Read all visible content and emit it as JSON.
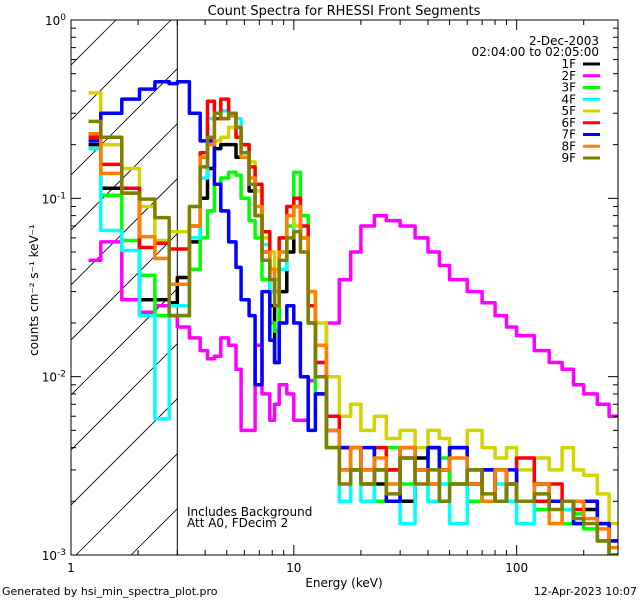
{
  "chart_data": {
    "type": "line",
    "title": "Count Spectra for RHESSI Front Segments",
    "xlabel": "Energy (keV)",
    "ylabel": "counts cm⁻² s⁻¹ keV⁻¹",
    "xscale": "log",
    "yscale": "log",
    "xlim": [
      1,
      285
    ],
    "ylim": [
      0.001,
      1
    ],
    "x_tick_labels": [
      "1",
      "10",
      "100"
    ],
    "x_ticks": [
      1,
      10,
      100
    ],
    "y_ticks": [
      1,
      0.1,
      0.01,
      0.001
    ],
    "y_tick_labels": [
      {
        "base": "10",
        "exp": "0"
      },
      {
        "base": "10",
        "exp": "-1"
      },
      {
        "base": "10",
        "exp": "-2"
      },
      {
        "base": "10",
        "exp": "-3"
      }
    ],
    "date": "2-Dec-2003",
    "time_range": "02:04:00 to 02:05:00",
    "annotations": [
      "Includes Background",
      "Att A0, FDecim 2"
    ],
    "shaded_below_keV": 3,
    "legend_position": "top-right",
    "energy_edges": [
      1.2,
      1.36,
      1.69,
      2.03,
      2.38,
      2.76,
      3.0,
      3.4,
      3.8,
      4.1,
      4.4,
      4.7,
      5.1,
      5.5,
      5.8,
      6.3,
      6.7,
      7.2,
      7.8,
      8.2,
      8.6,
      9.3,
      10,
      10.7,
      11.6,
      12.5,
      14,
      16,
      18,
      20,
      23,
      26,
      30,
      35,
      40,
      45,
      50,
      60,
      70,
      80,
      90,
      100,
      120,
      140,
      160,
      180,
      200,
      230,
      260,
      285
    ],
    "series": [
      {
        "name": "1F",
        "color": "#000000",
        "values": [
          0.2,
          0.114,
          0.114,
          0.027,
          0.027,
          0.026,
          0.036,
          0.057,
          0.1,
          0.147,
          0.19,
          0.2,
          0.2,
          0.17,
          0.17,
          0.11,
          0.08,
          0.05,
          0.025,
          0.012,
          0.03,
          0.05,
          0.09,
          0.06,
          0.02,
          0.01,
          0.005,
          0.003,
          0.004,
          0.003,
          0.0025,
          0.003,
          0.002,
          0.0035,
          0.004,
          0.003,
          0.0025,
          0.003,
          0.002,
          0.003,
          0.0025,
          0.002,
          0.0025,
          0.002,
          0.002,
          0.0015,
          0.0018,
          0.0012,
          0.001
        ]
      },
      {
        "name": "2F",
        "color": "#ff00ff",
        "values": [
          0.045,
          0.057,
          0.027,
          0.023,
          0.025,
          0.022,
          0.019,
          0.0165,
          0.014,
          0.0126,
          0.013,
          0.0165,
          0.015,
          0.011,
          0.005,
          0.005,
          0.015,
          0.008,
          0.0057,
          0.007,
          0.009,
          0.008,
          0.0057,
          0.0057,
          0.0095,
          0.012,
          0.02,
          0.035,
          0.05,
          0.07,
          0.08,
          0.075,
          0.07,
          0.06,
          0.05,
          0.042,
          0.035,
          0.03,
          0.026,
          0.022,
          0.019,
          0.017,
          0.014,
          0.012,
          0.011,
          0.009,
          0.008,
          0.007,
          0.006
        ]
      },
      {
        "name": "3F",
        "color": "#00ff00",
        "values": [
          0.19,
          0.104,
          0.058,
          0.037,
          0.022,
          0.022,
          0.022,
          0.04,
          0.06,
          0.085,
          0.12,
          0.13,
          0.14,
          0.135,
          0.1,
          0.075,
          0.06,
          0.035,
          0.02,
          0.018,
          0.04,
          0.07,
          0.14,
          0.08,
          0.03,
          0.008,
          0.004,
          0.002,
          0.003,
          0.0025,
          0.002,
          0.004,
          0.0025,
          0.003,
          0.002,
          0.0035,
          0.0025,
          0.002,
          0.003,
          0.002,
          0.0025,
          0.002,
          0.0018,
          0.002,
          0.0015,
          0.0017,
          0.0014,
          0.0012,
          0.001
        ]
      },
      {
        "name": "4F",
        "color": "#00ffff",
        "values": [
          0.19,
          0.066,
          0.051,
          0.022,
          0.0058,
          0.025,
          0.025,
          0.06,
          0.13,
          0.28,
          0.3,
          0.31,
          0.3,
          0.28,
          0.2,
          0.12,
          0.08,
          0.055,
          0.03,
          0.035,
          0.04,
          0.06,
          0.1,
          0.07,
          0.02,
          0.01,
          0.004,
          0.002,
          0.003,
          0.002,
          0.003,
          0.0025,
          0.0015,
          0.003,
          0.002,
          0.0025,
          0.0015,
          0.003,
          0.002,
          0.0025,
          0.002,
          0.0015,
          0.0025,
          0.002,
          0.0018,
          0.0015,
          0.002,
          0.0012,
          0.001
        ]
      },
      {
        "name": "5F",
        "color": "#d4d400",
        "values": [
          0.39,
          0.2,
          0.147,
          0.09,
          0.058,
          0.065,
          0.065,
          0.09,
          0.15,
          0.2,
          0.21,
          0.22,
          0.25,
          0.22,
          0.2,
          0.16,
          0.11,
          0.06,
          0.05,
          0.04,
          0.05,
          0.09,
          0.07,
          0.06,
          0.03,
          0.02,
          0.01,
          0.006,
          0.007,
          0.005,
          0.006,
          0.0045,
          0.005,
          0.004,
          0.005,
          0.0045,
          0.004,
          0.005,
          0.004,
          0.0035,
          0.004,
          0.003,
          0.0035,
          0.003,
          0.004,
          0.003,
          0.0028,
          0.0022,
          0.0015
        ]
      },
      {
        "name": "6F",
        "color": "#ff0000",
        "values": [
          0.22,
          0.155,
          0.114,
          0.053,
          0.056,
          0.052,
          0.052,
          0.07,
          0.18,
          0.35,
          0.28,
          0.36,
          0.3,
          0.22,
          0.2,
          0.15,
          0.12,
          0.065,
          0.04,
          0.03,
          0.06,
          0.09,
          0.1,
          0.07,
          0.025,
          0.012,
          0.006,
          0.004,
          0.003,
          0.0025,
          0.004,
          0.003,
          0.0035,
          0.003,
          0.0025,
          0.003,
          0.004,
          0.0025,
          0.003,
          0.002,
          0.0025,
          0.0035,
          0.002,
          0.0025,
          0.002,
          0.0018,
          0.002,
          0.0015,
          0.0012
        ]
      },
      {
        "name": "7F",
        "color": "#0000ff",
        "values": [
          0.21,
          0.3,
          0.36,
          0.41,
          0.45,
          0.44,
          0.45,
          0.3,
          0.21,
          0.21,
          0.12,
          0.085,
          0.057,
          0.041,
          0.027,
          0.022,
          0.009,
          0.03,
          0.016,
          0.012,
          0.02,
          0.025,
          0.02,
          0.01,
          0.005,
          0.008,
          0.005,
          0.004,
          0.003,
          0.004,
          0.003,
          0.002,
          0.004,
          0.003,
          0.004,
          0.003,
          0.004,
          0.0025,
          0.003,
          0.002,
          0.003,
          0.002,
          0.0025,
          0.002,
          0.002,
          0.0015,
          0.002,
          0.0015,
          0.0012
        ]
      },
      {
        "name": "8F",
        "color": "#ff8000",
        "values": [
          0.23,
          0.138,
          0.107,
          0.061,
          0.046,
          0.033,
          0.033,
          0.07,
          0.17,
          0.2,
          0.3,
          0.28,
          0.29,
          0.25,
          0.17,
          0.13,
          0.09,
          0.05,
          0.04,
          0.03,
          0.05,
          0.08,
          0.09,
          0.06,
          0.03,
          0.015,
          0.005,
          0.003,
          0.004,
          0.003,
          0.0035,
          0.0025,
          0.004,
          0.003,
          0.0025,
          0.003,
          0.0035,
          0.0025,
          0.002,
          0.003,
          0.0025,
          0.002,
          0.0025,
          0.0015,
          0.002,
          0.002,
          0.0016,
          0.0014,
          0.0011
        ]
      },
      {
        "name": "9F",
        "color": "#808000",
        "values": [
          0.27,
          0.22,
          0.107,
          0.099,
          0.078,
          0.022,
          0.022,
          0.09,
          0.15,
          0.22,
          0.3,
          0.28,
          0.3,
          0.25,
          0.18,
          0.12,
          0.08,
          0.045,
          0.035,
          0.025,
          0.045,
          0.06,
          0.065,
          0.05,
          0.02,
          0.01,
          0.004,
          0.0025,
          0.003,
          0.0025,
          0.003,
          0.0022,
          0.0035,
          0.0025,
          0.003,
          0.002,
          0.0025,
          0.003,
          0.0022,
          0.002,
          0.0025,
          0.002,
          0.0022,
          0.0018,
          0.002,
          0.0016,
          0.0015,
          0.0012,
          0.001
        ]
      }
    ]
  },
  "footer": {
    "generated_by": "Generated by hsi_min_spectra_plot.pro",
    "timestamp": "12-Apr-2023 10:07"
  }
}
